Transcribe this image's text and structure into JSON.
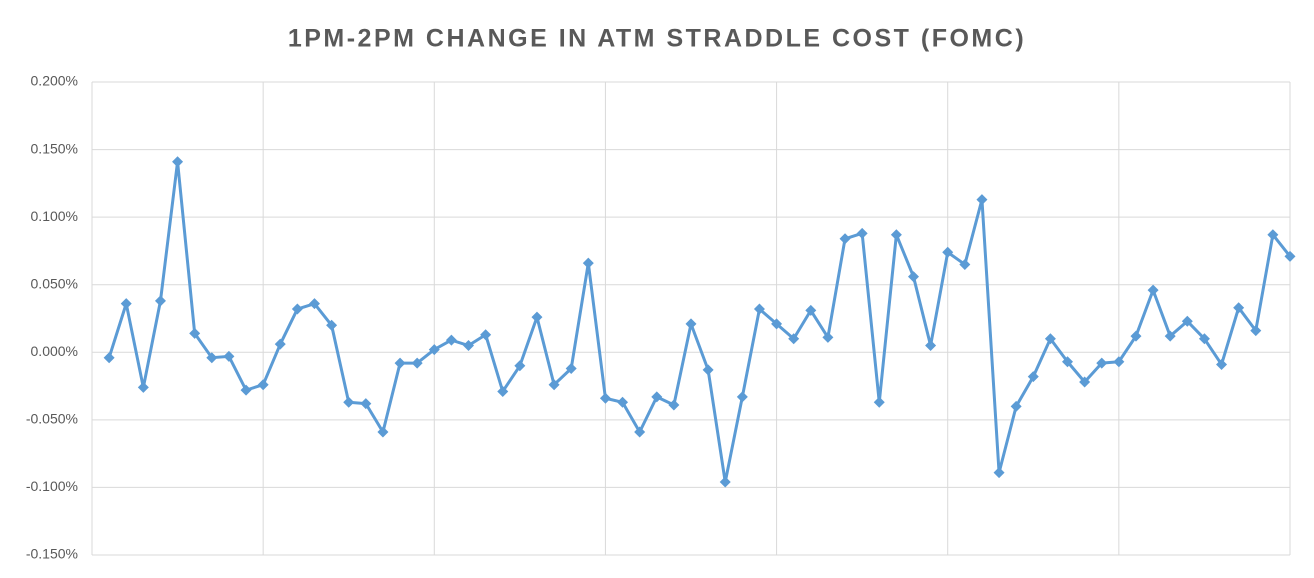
{
  "chart_data": {
    "type": "line",
    "title": "1PM-2PM CHANGE IN ATM STRADDLE COST (FOMC)",
    "values": [
      -0.004,
      0.036,
      -0.026,
      0.038,
      0.141,
      0.014,
      -0.004,
      -0.003,
      -0.028,
      -0.024,
      0.006,
      0.032,
      0.036,
      0.02,
      -0.037,
      -0.038,
      -0.059,
      -0.008,
      -0.008,
      0.002,
      0.009,
      0.005,
      0.013,
      -0.029,
      -0.01,
      0.026,
      -0.024,
      -0.012,
      0.066,
      -0.034,
      -0.037,
      -0.059,
      -0.033,
      -0.039,
      0.021,
      -0.013,
      -0.096,
      -0.033,
      0.032,
      0.021,
      0.01,
      0.031,
      0.011,
      0.084,
      0.088,
      -0.037,
      0.087,
      0.056,
      0.005,
      0.074,
      0.065,
      0.113,
      -0.089,
      -0.04,
      -0.018,
      0.01,
      -0.007,
      -0.022,
      -0.008,
      -0.007,
      0.012,
      0.046,
      0.012,
      0.023,
      0.01,
      -0.009,
      0.033,
      0.016,
      0.087,
      0.071
    ],
    "color": "#5b9bd5",
    "ylim": [
      -0.15,
      0.2
    ],
    "yticks": [
      {
        "value": -0.15,
        "label": "-0.150%"
      },
      {
        "value": -0.1,
        "label": "-0.100%"
      },
      {
        "value": -0.05,
        "label": "-0.050%"
      },
      {
        "value": 0,
        "label": "0.000%"
      },
      {
        "value": 0.05,
        "label": "0.050%"
      },
      {
        "value": 0.1,
        "label": "0.100%"
      },
      {
        "value": 0.15,
        "label": "0.150%"
      },
      {
        "value": 0.2,
        "label": "0.200%"
      }
    ],
    "grid": true
  }
}
